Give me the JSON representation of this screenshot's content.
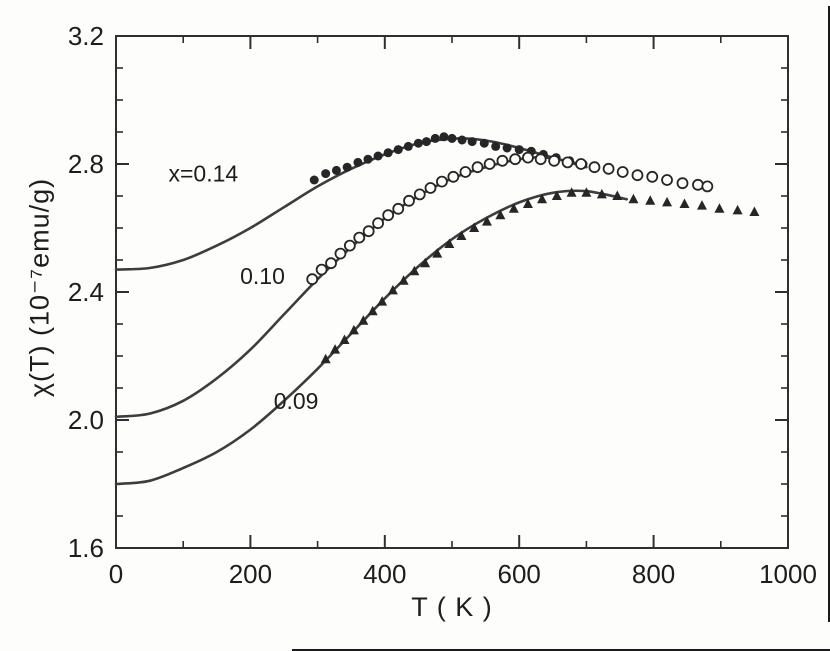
{
  "page": {
    "background": "#fdfdfb"
  },
  "chart_data": {
    "type": "line+scatter",
    "title": "",
    "xlabel": "T ( K )",
    "ylabel": "χ(T) (10⁻⁷emu/g)",
    "xlim": [
      0,
      1000
    ],
    "ylim": [
      1.6,
      3.2
    ],
    "xticks": [
      0,
      200,
      400,
      600,
      800,
      1000
    ],
    "xtick_labels": [
      "0",
      "200",
      "400",
      "600",
      "800",
      "1000"
    ],
    "x_minor_step": 100,
    "yticks": [
      1.6,
      2.0,
      2.4,
      2.8,
      3.2
    ],
    "ytick_labels": [
      "1.6",
      "2.0",
      "2.4",
      "2.8",
      "3.2"
    ],
    "y_minor_step": 0.1,
    "grid": false,
    "legend_position": "none",
    "style": {
      "axis_color": "#2f2f2f",
      "line_color": "#3d3d3d",
      "marker_color": "#262626",
      "open_fill": "#fdfdfb",
      "line_width": 2.6
    },
    "annotations": [
      {
        "text": "x=0.14",
        "x": 130,
        "y": 2.77
      },
      {
        "text": "0.10",
        "x": 218,
        "y": 2.45
      },
      {
        "text": "0.09",
        "x": 268,
        "y": 2.06
      }
    ],
    "series": [
      {
        "id": "x014-model",
        "name": "x=0.14",
        "kind": "line",
        "x": [
          0,
          50,
          100,
          150,
          200,
          250,
          300,
          350,
          400,
          450,
          480,
          520,
          560,
          600,
          650,
          700
        ],
        "y": [
          2.47,
          2.475,
          2.5,
          2.545,
          2.6,
          2.665,
          2.73,
          2.785,
          2.83,
          2.865,
          2.875,
          2.88,
          2.87,
          2.85,
          2.82,
          2.79
        ]
      },
      {
        "id": "x010-model",
        "name": "0.10",
        "kind": "line",
        "x": [
          0,
          50,
          100,
          150,
          200,
          250,
          300,
          350,
          400,
          450,
          500,
          550,
          600,
          640,
          690
        ],
        "y": [
          2.01,
          2.02,
          2.06,
          2.13,
          2.22,
          2.33,
          2.44,
          2.54,
          2.63,
          2.7,
          2.755,
          2.79,
          2.815,
          2.82,
          2.8
        ]
      },
      {
        "id": "x009-model",
        "name": "0.09",
        "kind": "line",
        "x": [
          0,
          50,
          100,
          150,
          200,
          250,
          300,
          350,
          400,
          450,
          500,
          550,
          600,
          650,
          700,
          760
        ],
        "y": [
          1.8,
          1.81,
          1.85,
          1.9,
          1.97,
          2.06,
          2.16,
          2.27,
          2.38,
          2.48,
          2.565,
          2.63,
          2.68,
          2.71,
          2.715,
          2.69
        ]
      },
      {
        "id": "x014-data",
        "name": "x=0.14",
        "kind": "scatter",
        "marker": "filled-circle",
        "x": [
          295,
          312,
          328,
          344,
          360,
          375,
          390,
          405,
          420,
          435,
          450,
          462,
          475,
          488,
          500,
          515,
          530,
          548,
          565,
          582,
          600,
          618,
          636,
          655,
          675,
          695
        ],
        "y": [
          2.75,
          2.77,
          2.78,
          2.79,
          2.805,
          2.815,
          2.825,
          2.835,
          2.845,
          2.855,
          2.865,
          2.87,
          2.88,
          2.885,
          2.88,
          2.875,
          2.87,
          2.865,
          2.855,
          2.85,
          2.845,
          2.84,
          2.83,
          2.82,
          2.81,
          2.8
        ]
      },
      {
        "id": "x010-data",
        "name": "0.10",
        "kind": "scatter",
        "marker": "open-circle",
        "x": [
          292,
          306,
          320,
          334,
          348,
          362,
          376,
          390,
          405,
          420,
          436,
          452,
          468,
          485,
          502,
          520,
          538,
          556,
          575,
          594,
          613,
          632,
          652,
          672,
          692,
          712,
          733,
          754,
          776,
          798,
          820,
          843,
          866,
          880
        ],
        "y": [
          2.44,
          2.47,
          2.49,
          2.52,
          2.545,
          2.57,
          2.59,
          2.615,
          2.64,
          2.66,
          2.685,
          2.705,
          2.725,
          2.745,
          2.76,
          2.775,
          2.79,
          2.8,
          2.81,
          2.815,
          2.82,
          2.815,
          2.81,
          2.805,
          2.8,
          2.79,
          2.785,
          2.775,
          2.765,
          2.76,
          2.75,
          2.74,
          2.735,
          2.73
        ]
      },
      {
        "id": "x009-data",
        "name": "0.09",
        "kind": "scatter",
        "marker": "filled-triangle",
        "x": [
          312,
          326,
          340,
          354,
          368,
          382,
          396,
          412,
          428,
          444,
          460,
          478,
          496,
          514,
          533,
          552,
          572,
          592,
          613,
          634,
          656,
          678,
          700,
          723,
          746,
          770,
          795,
          820,
          846,
          872,
          898,
          925,
          950
        ],
        "y": [
          2.19,
          2.22,
          2.25,
          2.28,
          2.31,
          2.34,
          2.37,
          2.405,
          2.435,
          2.465,
          2.49,
          2.52,
          2.55,
          2.575,
          2.6,
          2.62,
          2.64,
          2.66,
          2.675,
          2.69,
          2.7,
          2.71,
          2.71,
          2.705,
          2.7,
          2.69,
          2.685,
          2.68,
          2.675,
          2.67,
          2.66,
          2.655,
          2.65
        ]
      }
    ]
  }
}
